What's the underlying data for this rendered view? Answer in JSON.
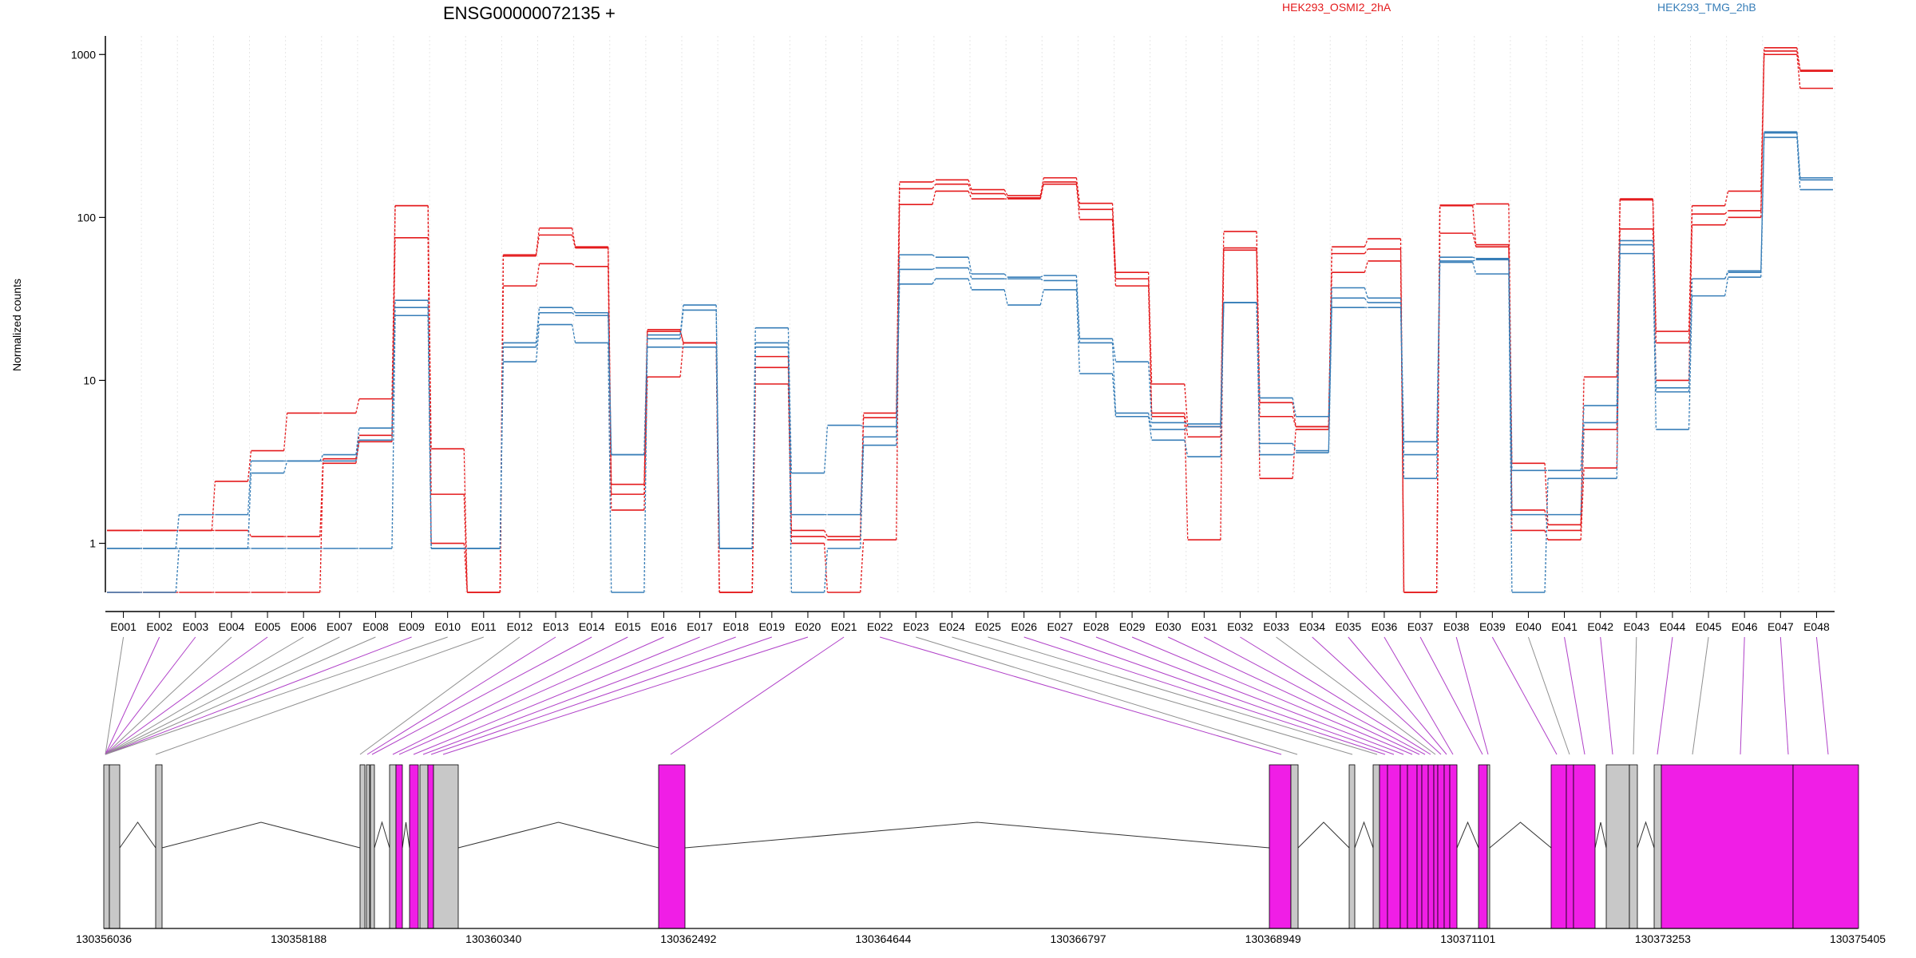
{
  "chart_data": {
    "type": "line",
    "title": "ENSG00000072135 +",
    "ylabel": "Normalized counts",
    "y_scale": "log",
    "ylim": [
      0.5,
      1300
    ],
    "y_ticks": [
      {
        "value": 1,
        "label": "1"
      },
      {
        "value": 10,
        "label": "10"
      },
      {
        "value": 100,
        "label": "100"
      },
      {
        "value": 1000,
        "label": "1000"
      }
    ],
    "grid": "vertical dotted lines at each exon bin",
    "legend_placement": "top-right",
    "exon_bins": [
      "E001",
      "E002",
      "E003",
      "E004",
      "E005",
      "E006",
      "E007",
      "E008",
      "E009",
      "E010",
      "E011",
      "E012",
      "E013",
      "E014",
      "E015",
      "E016",
      "E017",
      "E018",
      "E019",
      "E020",
      "E021",
      "E022",
      "E023",
      "E024",
      "E025",
      "E026",
      "E027",
      "E028",
      "E029",
      "E030",
      "E031",
      "E032",
      "E033",
      "E034",
      "E035",
      "E036",
      "E037",
      "E038",
      "E039",
      "E040",
      "E041",
      "E042",
      "E043",
      "E044",
      "E045",
      "E046",
      "E047",
      "E048"
    ],
    "series": [
      {
        "name": "HEK293_OSMI2_2hA",
        "color": "#e41a1c",
        "values": [
          1.2,
          1.2,
          1.2,
          2.4,
          3.7,
          6.3,
          6.3,
          7.7,
          118,
          3.8,
          0.5,
          59,
          86,
          66,
          2.3,
          20.5,
          17,
          0.5,
          14,
          1.2,
          1.1,
          6.3,
          165,
          170,
          148,
          136,
          175,
          122,
          46,
          9.5,
          5.2,
          82,
          7.3,
          5.2,
          66,
          74,
          0.5,
          119,
          121,
          3.1,
          1.3,
          10.5,
          130,
          20,
          118,
          145,
          1100,
          800
        ]
      },
      {
        "name": "HEK293_OSMI2_2hA",
        "color": "#e41a1c",
        "values": [
          1.2,
          1.2,
          1.2,
          1.2,
          1.1,
          1.1,
          3.3,
          4.6,
          118,
          2.0,
          0.5,
          58,
          78,
          65,
          2.0,
          20.0,
          17,
          0.5,
          12,
          1.1,
          1.05,
          5.9,
          150,
          160,
          140,
          132,
          165,
          112,
          42,
          6.3,
          4.5,
          65,
          6.0,
          5.2,
          60,
          64,
          0.5,
          118,
          68,
          1.6,
          1.2,
          5.0,
          128,
          17,
          105,
          110,
          1050,
          790
        ]
      },
      {
        "name": "HEK293_OSMI2_2hA",
        "color": "#e41a1c",
        "values": [
          0.5,
          0.5,
          0.5,
          0.5,
          0.5,
          0.5,
          3.1,
          4.2,
          75,
          1.0,
          0.5,
          38,
          52,
          50,
          1.6,
          10.5,
          17,
          0.5,
          9.5,
          1.0,
          0.5,
          1.05,
          120,
          145,
          130,
          130,
          160,
          97,
          38,
          6.0,
          1.05,
          63,
          2.5,
          5.0,
          46,
          54,
          0.5,
          80,
          66,
          1.2,
          1.05,
          2.9,
          85,
          10,
          90,
          100,
          1000,
          620
        ]
      },
      {
        "name": "HEK293_TMG_2hB",
        "color": "#377eb8",
        "values": [
          0.93,
          0.93,
          1.5,
          1.5,
          3.2,
          3.2,
          3.5,
          5.1,
          31,
          0.93,
          0.93,
          17,
          28,
          26,
          3.5,
          19,
          29,
          0.93,
          21,
          2.7,
          5.3,
          5.2,
          59,
          57,
          45,
          43,
          44,
          18,
          13,
          5.5,
          5.4,
          30,
          7.8,
          6.0,
          37,
          32,
          4.2,
          57,
          56,
          2.8,
          2.8,
          7.0,
          72,
          9,
          42,
          47,
          335,
          175
        ]
      },
      {
        "name": "HEK293_TMG_2hB",
        "color": "#377eb8",
        "values": [
          0.93,
          0.93,
          0.93,
          0.93,
          2.7,
          3.2,
          3.2,
          4.3,
          28,
          0.93,
          0.93,
          16,
          26,
          25,
          3.5,
          18,
          27,
          0.93,
          17,
          1.5,
          1.5,
          4.5,
          48,
          49,
          42,
          42,
          41,
          17,
          6.3,
          5.0,
          5.2,
          30,
          4.1,
          3.7,
          32,
          30,
          3.5,
          54,
          55,
          1.5,
          1.5,
          5.5,
          68,
          8.5,
          42,
          46,
          330,
          170
        ]
      },
      {
        "name": "HEK293_TMG_2hB",
        "color": "#377eb8",
        "values": [
          0.5,
          0.5,
          0.93,
          0.93,
          0.93,
          0.93,
          0.93,
          0.93,
          25,
          0.93,
          0.93,
          13,
          22,
          17,
          0.5,
          16,
          16,
          0.93,
          16,
          0.5,
          0.93,
          4.0,
          39,
          42,
          36,
          29,
          36,
          11,
          6.0,
          4.3,
          3.4,
          30,
          3.5,
          3.6,
          28,
          28,
          2.5,
          53,
          45,
          0.5,
          2.5,
          2.5,
          60,
          5,
          33,
          43,
          310,
          148
        ]
      }
    ],
    "gene_model": {
      "genomic_ticks": [
        "130356036",
        "130358188",
        "130360340",
        "130362492",
        "130364644",
        "130366797",
        "130368949",
        "130371101",
        "130373253",
        "130375405"
      ],
      "highlight_color": "#f01ee6",
      "base_color": "#c8c8c8"
    }
  }
}
